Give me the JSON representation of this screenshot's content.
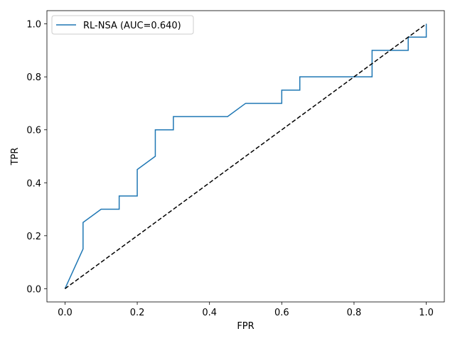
{
  "chart_data": {
    "type": "line",
    "xlabel": "FPR",
    "ylabel": "TPR",
    "xlim": [
      -0.05,
      1.05
    ],
    "ylim": [
      -0.05,
      1.05
    ],
    "xticks": [
      0.0,
      0.2,
      0.4,
      0.6,
      0.8,
      1.0
    ],
    "yticks": [
      0.0,
      0.2,
      0.4,
      0.6,
      0.8,
      1.0
    ],
    "xtick_labels": [
      "0.0",
      "0.2",
      "0.4",
      "0.6",
      "0.8",
      "1.0"
    ],
    "ytick_labels": [
      "0.0",
      "0.2",
      "0.4",
      "0.6",
      "0.8",
      "1.0"
    ],
    "grid": false,
    "legend_position": "top-left",
    "series": [
      {
        "name": "RL-NSA (AUC=0.640)",
        "color": "#1f77b4",
        "style": "solid",
        "x": [
          0.0,
          0.05,
          0.05,
          0.1,
          0.15,
          0.15,
          0.2,
          0.2,
          0.25,
          0.25,
          0.3,
          0.3,
          0.45,
          0.5,
          0.6,
          0.6,
          0.65,
          0.65,
          0.85,
          0.85,
          0.95,
          0.95,
          1.0,
          1.0
        ],
        "y": [
          0.0,
          0.15,
          0.25,
          0.3,
          0.3,
          0.35,
          0.35,
          0.45,
          0.5,
          0.6,
          0.6,
          0.65,
          0.65,
          0.7,
          0.7,
          0.75,
          0.75,
          0.8,
          0.8,
          0.9,
          0.9,
          0.95,
          0.95,
          1.0
        ]
      },
      {
        "color": "#000000",
        "style": "dashed",
        "x": [
          0.0,
          1.0
        ],
        "y": [
          0.0,
          1.0
        ]
      }
    ]
  }
}
